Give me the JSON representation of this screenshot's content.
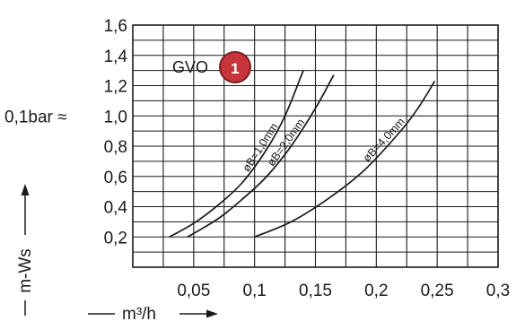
{
  "chart_data": {
    "type": "line",
    "title": "",
    "badge": {
      "text": "GVO",
      "number": "1",
      "fill_color": "#c8343c",
      "ring_color": "#7a1f24"
    },
    "ylabel": "m-Ws",
    "xlabel": "m³/h",
    "y_annotation": "0,1bar ≈",
    "xlim": [
      0,
      0.3
    ],
    "ylim": [
      0,
      1.6
    ],
    "grid": true,
    "x_ticks": [
      0.05,
      0.1,
      0.15,
      0.2,
      0.25,
      0.3
    ],
    "x_tick_labels": [
      "0,05",
      "0,1",
      "0,15",
      "0,2",
      "0,25",
      "0,3"
    ],
    "y_ticks": [
      0.2,
      0.4,
      0.6,
      0.8,
      1.0,
      1.2,
      1.4,
      1.6
    ],
    "y_tick_labels": [
      "0,2",
      "0,4",
      "0,6",
      "0,8",
      "1,0",
      "1,2",
      "1,4",
      "1,6"
    ],
    "series": [
      {
        "name": "øB=1,0mm",
        "x": [
          0.03,
          0.05,
          0.07,
          0.09,
          0.11,
          0.125,
          0.14
        ],
        "y": [
          0.2,
          0.29,
          0.41,
          0.56,
          0.78,
          1.0,
          1.3
        ],
        "label_at": 0.109
      },
      {
        "name": "øB=2,0mm",
        "x": [
          0.045,
          0.07,
          0.09,
          0.11,
          0.13,
          0.15,
          0.165
        ],
        "y": [
          0.2,
          0.32,
          0.45,
          0.6,
          0.8,
          1.05,
          1.27
        ],
        "label_at": 0.13
      },
      {
        "name": "øB=4,0mm",
        "x": [
          0.1,
          0.13,
          0.16,
          0.19,
          0.22,
          0.235,
          0.248
        ],
        "y": [
          0.2,
          0.3,
          0.45,
          0.64,
          0.9,
          1.06,
          1.23
        ],
        "label_at": 0.21
      }
    ]
  }
}
